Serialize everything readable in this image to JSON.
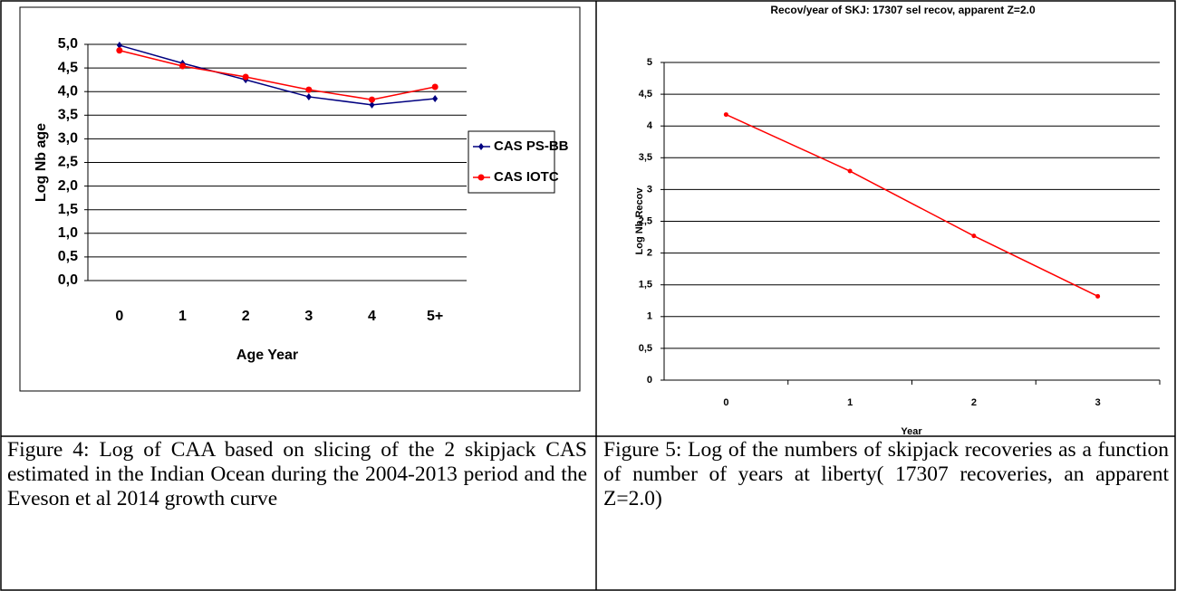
{
  "chart_data": [
    {
      "type": "line",
      "ylabel": "Log Nb age",
      "xlabel": "Age Year",
      "categories": [
        "0",
        "1",
        "2",
        "3",
        "4",
        "5+"
      ],
      "series": [
        {
          "name": "CAS PS-BB",
          "color": "#000080",
          "values": [
            4.98,
            4.6,
            4.25,
            3.89,
            3.72,
            3.85
          ]
        },
        {
          "name": "CAS IOTC",
          "color": "#ff0000",
          "values": [
            4.87,
            4.54,
            4.31,
            4.04,
            3.83,
            4.1
          ]
        }
      ],
      "ylim": [
        0,
        5
      ],
      "yticks": [
        {
          "value": 0,
          "label": "0,0"
        },
        {
          "value": 0.5,
          "label": "0,5"
        },
        {
          "value": 1,
          "label": "1,0"
        },
        {
          "value": 1.5,
          "label": "1,5"
        },
        {
          "value": 2,
          "label": "2,0"
        },
        {
          "value": 2.5,
          "label": "2,5"
        },
        {
          "value": 3,
          "label": "3,0"
        },
        {
          "value": 3.5,
          "label": "3,5"
        },
        {
          "value": 4,
          "label": "4,0"
        },
        {
          "value": 4.5,
          "label": "4,5"
        },
        {
          "value": 5,
          "label": "5,0"
        }
      ],
      "grid": true,
      "legend": "right"
    },
    {
      "type": "line",
      "title": "Recov/year of SKJ: 17307 sel recov, apparent Z=2.0",
      "ylabel": "Log Nb Recov",
      "xlabel": "Year",
      "categories": [
        "0",
        "1",
        "2",
        "3"
      ],
      "values": [
        4.18,
        3.29,
        2.27,
        1.32
      ],
      "color": "#ff0000",
      "ylim": [
        0,
        5
      ],
      "yticks": [
        0,
        {
          "value": 0.5,
          "label": "0,5"
        },
        1,
        {
          "value": 1.5,
          "label": "1,5"
        },
        2,
        {
          "value": 2.5,
          "label": "2,5"
        },
        3,
        {
          "value": 3.5,
          "label": "3,5"
        },
        4,
        {
          "value": 4.5,
          "label": "4,5"
        },
        5
      ],
      "grid": true
    }
  ],
  "captions": [
    "Figure 4: Log of CAA based on slicing of the 2 skipjack CAS estimated in the Indian Ocean during the 2004-2013 period and the Eveson et al 2014 growth curve",
    "Figure 5: Log of the numbers of skipjack recoveries as a function of number of years at liberty( 17307 recoveries, an apparent Z=2.0)"
  ]
}
